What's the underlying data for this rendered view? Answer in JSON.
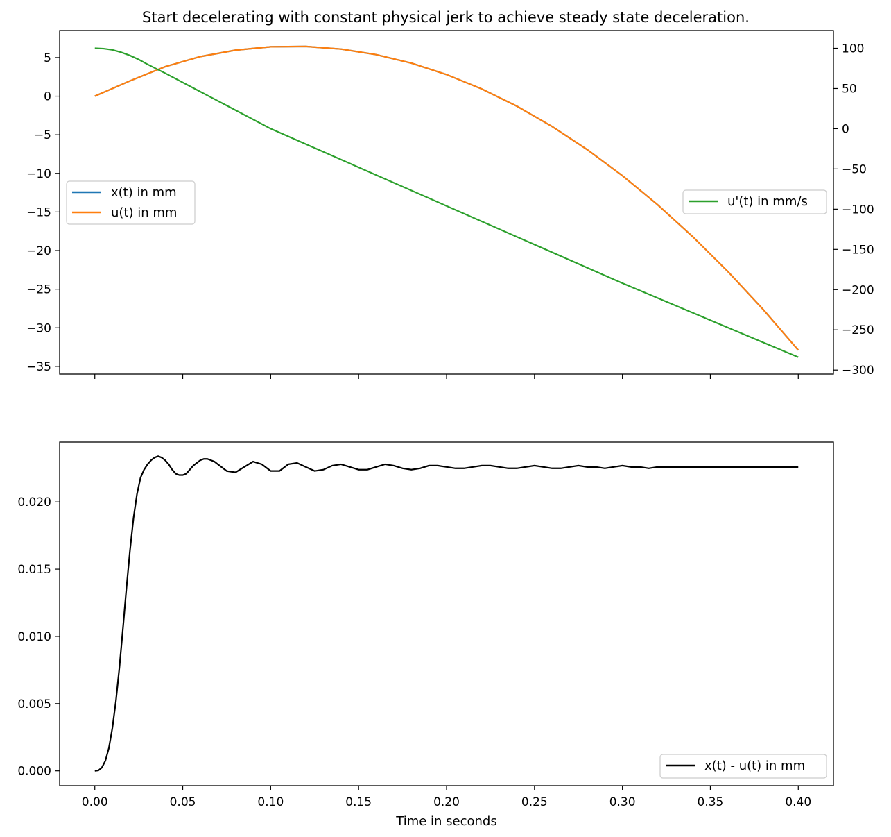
{
  "title": "Start decelerating with constant physical jerk to achieve steady state deceleration.",
  "chart_data": [
    {
      "type": "line",
      "position": "top",
      "x_ticks": [
        "0.00",
        "0.05",
        "0.10",
        "0.15",
        "0.20",
        "0.25",
        "0.30",
        "0.35",
        "0.40"
      ],
      "xlim": [
        -0.02,
        0.42
      ],
      "left_axis": {
        "ylim": [
          -36,
          8.5
        ],
        "ticks": [
          "5",
          "0",
          "−5",
          "−10",
          "−15",
          "−20",
          "−25",
          "−30",
          "−35"
        ]
      },
      "right_axis": {
        "ylim": [
          -305,
          122
        ],
        "ticks": [
          "100",
          "50",
          "0",
          "−50",
          "−100",
          "−150",
          "−200",
          "−250",
          "−300"
        ]
      },
      "series": [
        {
          "name": "x(t)  in mm",
          "axis": "left",
          "color": "#1f77b4",
          "x": [
            0.0,
            0.02,
            0.04,
            0.06,
            0.08,
            0.1,
            0.12,
            0.14,
            0.16,
            0.18,
            0.2,
            0.22,
            0.24,
            0.26,
            0.28,
            0.3,
            0.32,
            0.34,
            0.36,
            0.38,
            0.4
          ],
          "y": [
            0.0,
            1.98,
            3.82,
            5.13,
            5.96,
            6.4,
            6.44,
            6.1,
            5.38,
            4.28,
            2.8,
            0.94,
            -1.3,
            -3.92,
            -6.92,
            -10.3,
            -14.06,
            -18.2,
            -22.72,
            -27.62,
            -32.9
          ]
        },
        {
          "name": "u(t)  in mm",
          "axis": "left",
          "color": "#ff7f0e",
          "x": [
            0.0,
            0.02,
            0.04,
            0.06,
            0.08,
            0.1,
            0.12,
            0.14,
            0.16,
            0.18,
            0.2,
            0.22,
            0.24,
            0.26,
            0.28,
            0.3,
            0.32,
            0.34,
            0.36,
            0.38,
            0.4
          ],
          "y": [
            0.0,
            1.98,
            3.82,
            5.13,
            5.96,
            6.4,
            6.44,
            6.1,
            5.38,
            4.28,
            2.8,
            0.94,
            -1.3,
            -3.92,
            -6.92,
            -10.3,
            -14.06,
            -18.2,
            -22.72,
            -27.62,
            -32.9
          ]
        },
        {
          "name": "u'(t)  in mm/s",
          "axis": "right",
          "color": "#2ca02c",
          "x": [
            0.0,
            0.005,
            0.01,
            0.015,
            0.02,
            0.025,
            0.03,
            0.04,
            0.1,
            0.2,
            0.3,
            0.4
          ],
          "y": [
            100,
            99.5,
            98,
            95,
            91,
            86,
            80,
            69,
            0,
            -96,
            -192,
            -284
          ]
        }
      ],
      "legends": [
        {
          "placement": "center-left",
          "entries": [
            "x(t)  in mm",
            "u(t)  in mm"
          ]
        },
        {
          "placement": "center-right",
          "entries": [
            "u'(t)  in mm/s"
          ]
        }
      ]
    },
    {
      "type": "line",
      "position": "bottom",
      "xlabel": "Time in seconds",
      "x_ticks": [
        "0.00",
        "0.05",
        "0.10",
        "0.15",
        "0.20",
        "0.25",
        "0.30",
        "0.35",
        "0.40"
      ],
      "xlim": [
        -0.02,
        0.42
      ],
      "ylim": [
        -0.0011,
        0.02445
      ],
      "y_ticks": [
        "0.000",
        "0.005",
        "0.010",
        "0.015",
        "0.020"
      ],
      "series": [
        {
          "name": "x(t) - u(t)  in mm",
          "color": "#000000",
          "x": [
            0.0,
            0.002,
            0.004,
            0.006,
            0.008,
            0.01,
            0.012,
            0.014,
            0.016,
            0.018,
            0.02,
            0.022,
            0.024,
            0.026,
            0.028,
            0.03,
            0.032,
            0.034,
            0.036,
            0.038,
            0.04,
            0.042,
            0.044,
            0.046,
            0.048,
            0.05,
            0.052,
            0.054,
            0.056,
            0.058,
            0.06,
            0.062,
            0.064,
            0.066,
            0.068,
            0.07,
            0.075,
            0.08,
            0.085,
            0.09,
            0.095,
            0.1,
            0.105,
            0.11,
            0.115,
            0.12,
            0.125,
            0.13,
            0.135,
            0.14,
            0.145,
            0.15,
            0.155,
            0.16,
            0.165,
            0.17,
            0.175,
            0.18,
            0.185,
            0.19,
            0.195,
            0.2,
            0.205,
            0.21,
            0.215,
            0.22,
            0.225,
            0.23,
            0.235,
            0.24,
            0.245,
            0.25,
            0.255,
            0.26,
            0.265,
            0.27,
            0.275,
            0.28,
            0.285,
            0.29,
            0.295,
            0.3,
            0.305,
            0.31,
            0.315,
            0.32,
            0.325,
            0.33,
            0.335,
            0.34,
            0.345,
            0.35,
            0.355,
            0.36,
            0.365,
            0.37,
            0.375,
            0.38,
            0.385,
            0.39,
            0.395,
            0.4
          ],
          "y": [
            0.0,
            3e-05,
            0.00024,
            0.00075,
            0.0017,
            0.0032,
            0.0052,
            0.0077,
            0.0106,
            0.0136,
            0.0164,
            0.0188,
            0.0206,
            0.0218,
            0.0224,
            0.0228,
            0.0231,
            0.0233,
            0.0234,
            0.0233,
            0.0231,
            0.0228,
            0.0224,
            0.0221,
            0.022,
            0.022,
            0.0221,
            0.0224,
            0.0227,
            0.0229,
            0.0231,
            0.0232,
            0.0232,
            0.0231,
            0.023,
            0.0228,
            0.0223,
            0.0222,
            0.0226,
            0.023,
            0.0228,
            0.0223,
            0.0223,
            0.0228,
            0.0229,
            0.0226,
            0.0223,
            0.0224,
            0.0227,
            0.0228,
            0.0226,
            0.0224,
            0.0224,
            0.0226,
            0.0228,
            0.0227,
            0.0225,
            0.0224,
            0.0225,
            0.0227,
            0.0227,
            0.0226,
            0.0225,
            0.0225,
            0.0226,
            0.0227,
            0.0227,
            0.0226,
            0.0225,
            0.0225,
            0.0226,
            0.0227,
            0.0226,
            0.0225,
            0.0225,
            0.0226,
            0.0227,
            0.0226,
            0.0226,
            0.0225,
            0.0226,
            0.0227,
            0.0226,
            0.0226,
            0.0225,
            0.0226,
            0.0226,
            0.0226,
            0.0226,
            0.0226,
            0.0226,
            0.0226,
            0.0226,
            0.0226,
            0.0226,
            0.0226,
            0.0226,
            0.0226,
            0.0226,
            0.0226,
            0.0226,
            0.0226
          ]
        }
      ],
      "legends": [
        {
          "placement": "lower-right",
          "entries": [
            "x(t) - u(t)  in mm"
          ]
        }
      ]
    }
  ]
}
